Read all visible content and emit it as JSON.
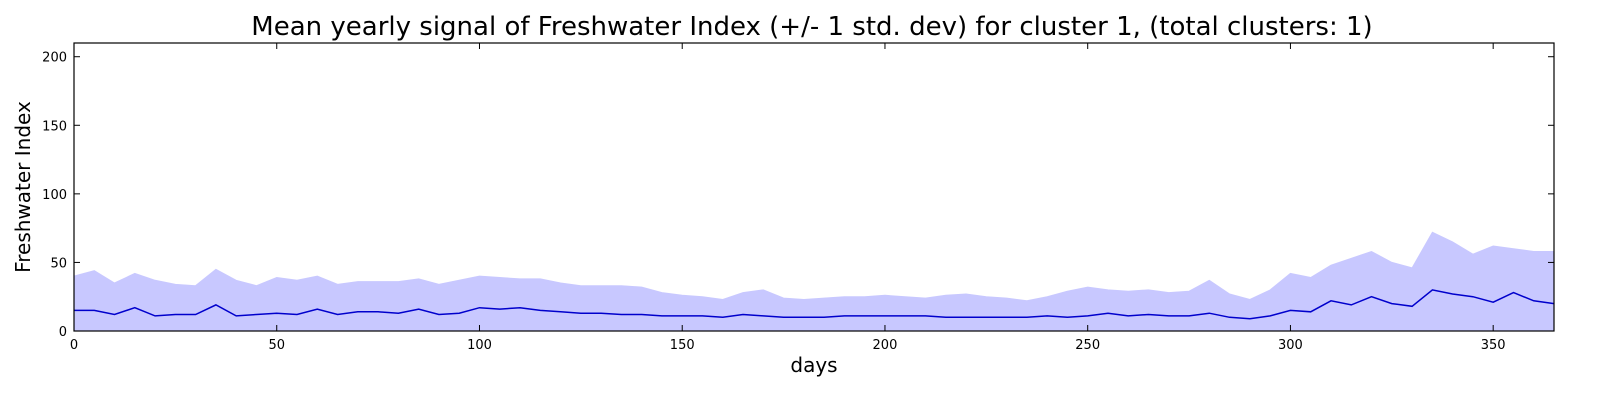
{
  "chart_data": {
    "type": "area",
    "title": "Mean yearly signal of Freshwater Index (+/- 1 std. dev) for cluster 1, (total clusters: 1)",
    "xlabel": "days",
    "ylabel": "Freshwater Index",
    "xlim": [
      0,
      365
    ],
    "ylim": [
      0,
      210
    ],
    "xticks": [
      0,
      50,
      100,
      150,
      200,
      250,
      300,
      350
    ],
    "yticks": [
      0,
      50,
      100,
      150,
      200
    ],
    "grid": false,
    "colors": {
      "mean_line": "#0000cc",
      "std_band": "#c8c8ff"
    },
    "series": [
      {
        "role": "mean",
        "x": [
          0,
          5,
          10,
          15,
          20,
          25,
          30,
          35,
          40,
          45,
          50,
          55,
          60,
          65,
          70,
          75,
          80,
          85,
          90,
          95,
          100,
          105,
          110,
          115,
          120,
          125,
          130,
          135,
          140,
          145,
          150,
          155,
          160,
          165,
          170,
          175,
          180,
          185,
          190,
          195,
          200,
          205,
          210,
          215,
          220,
          225,
          230,
          235,
          240,
          245,
          250,
          255,
          260,
          265,
          270,
          275,
          280,
          285,
          290,
          295,
          300,
          305,
          310,
          315,
          320,
          325,
          330,
          335,
          340,
          345,
          350,
          355,
          360,
          365
        ],
        "y": [
          15,
          15,
          12,
          17,
          11,
          12,
          12,
          19,
          11,
          12,
          13,
          12,
          16,
          12,
          14,
          14,
          13,
          16,
          12,
          13,
          17,
          16,
          17,
          15,
          14,
          13,
          13,
          12,
          12,
          11,
          11,
          11,
          10,
          12,
          11,
          10,
          10,
          10,
          11,
          11,
          11,
          11,
          11,
          10,
          10,
          10,
          10,
          10,
          11,
          10,
          11,
          13,
          11,
          12,
          11,
          11,
          13,
          10,
          9,
          11,
          15,
          14,
          22,
          19,
          25,
          20,
          18,
          30,
          27,
          25,
          21,
          28,
          22,
          20
        ]
      },
      {
        "role": "upper_std",
        "x": [
          0,
          5,
          10,
          15,
          20,
          25,
          30,
          35,
          40,
          45,
          50,
          55,
          60,
          65,
          70,
          75,
          80,
          85,
          90,
          95,
          100,
          105,
          110,
          115,
          120,
          125,
          130,
          135,
          140,
          145,
          150,
          155,
          160,
          165,
          170,
          175,
          180,
          185,
          190,
          195,
          200,
          205,
          210,
          215,
          220,
          225,
          230,
          235,
          240,
          245,
          250,
          255,
          260,
          265,
          270,
          275,
          280,
          285,
          290,
          295,
          300,
          305,
          310,
          315,
          320,
          325,
          330,
          335,
          340,
          345,
          350,
          355,
          360,
          365
        ],
        "y": [
          40,
          44,
          35,
          42,
          37,
          34,
          33,
          45,
          37,
          33,
          39,
          37,
          40,
          34,
          36,
          36,
          36,
          38,
          34,
          37,
          40,
          39,
          38,
          38,
          35,
          33,
          33,
          33,
          32,
          28,
          26,
          25,
          23,
          28,
          30,
          24,
          23,
          24,
          25,
          25,
          26,
          25,
          24,
          26,
          27,
          25,
          24,
          22,
          25,
          29,
          32,
          30,
          29,
          30,
          28,
          29,
          37,
          27,
          23,
          30,
          42,
          39,
          48,
          53,
          58,
          50,
          46,
          72,
          65,
          56,
          62,
          60,
          58,
          58
        ]
      },
      {
        "role": "lower_std",
        "x": [
          0,
          365
        ],
        "y": [
          0,
          0
        ]
      }
    ]
  }
}
